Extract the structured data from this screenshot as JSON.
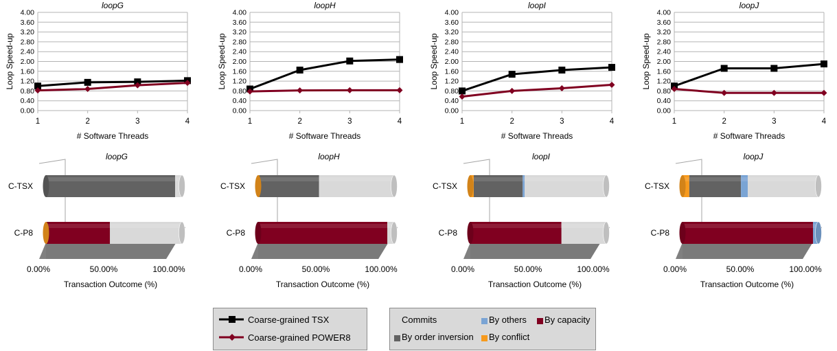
{
  "chart_data": [
    {
      "type": "line",
      "title": "loopG",
      "xlabel": "# Software Threads",
      "ylabel": "Loop Speed-up",
      "x": [
        1,
        2,
        3,
        4
      ],
      "ylim": [
        0,
        4
      ],
      "yticks": [
        "0.00",
        "0.40",
        "0.80",
        "1.20",
        "1.60",
        "2.00",
        "2.40",
        "2.80",
        "3.20",
        "3.60",
        "4.00"
      ],
      "series": [
        {
          "name": "Coarse-grained TSX",
          "values": [
            1.0,
            1.15,
            1.17,
            1.22
          ]
        },
        {
          "name": "Coarse-grained POWER8",
          "values": [
            0.82,
            0.88,
            1.03,
            1.13
          ]
        }
      ]
    },
    {
      "type": "line",
      "title": "loopH",
      "xlabel": "# Software Threads",
      "ylabel": "Loop Speed-up",
      "x": [
        1,
        2,
        3,
        4
      ],
      "ylim": [
        0,
        4
      ],
      "yticks": [
        "0.00",
        "0.40",
        "0.80",
        "1.20",
        "1.60",
        "2.00",
        "2.40",
        "2.80",
        "3.20",
        "3.60",
        "4.00"
      ],
      "series": [
        {
          "name": "Coarse-grained TSX",
          "values": [
            0.88,
            1.65,
            2.02,
            2.08
          ]
        },
        {
          "name": "Coarse-grained POWER8",
          "values": [
            0.78,
            0.82,
            0.83,
            0.83
          ]
        }
      ]
    },
    {
      "type": "line",
      "title": "loopI",
      "xlabel": "# Software Threads",
      "ylabel": "Loop Speed-up",
      "x": [
        1,
        2,
        3,
        4
      ],
      "ylim": [
        0,
        4
      ],
      "yticks": [
        "0.00",
        "0.40",
        "0.80",
        "1.20",
        "1.60",
        "2.00",
        "2.40",
        "2.80",
        "3.20",
        "3.60",
        "4.00"
      ],
      "series": [
        {
          "name": "Coarse-grained TSX",
          "values": [
            0.8,
            1.48,
            1.65,
            1.76
          ]
        },
        {
          "name": "Coarse-grained POWER8",
          "values": [
            0.57,
            0.8,
            0.91,
            1.05
          ]
        }
      ]
    },
    {
      "type": "line",
      "title": "loopJ",
      "xlabel": "# Software Threads",
      "ylabel": "Loop Speed-up",
      "x": [
        1,
        2,
        3,
        4
      ],
      "ylim": [
        0,
        4
      ],
      "yticks": [
        "0.00",
        "0.40",
        "0.80",
        "1.20",
        "1.60",
        "2.00",
        "2.40",
        "2.80",
        "3.20",
        "3.60",
        "4.00"
      ],
      "series": [
        {
          "name": "Coarse-grained TSX",
          "values": [
            1.0,
            1.72,
            1.72,
            1.9
          ]
        },
        {
          "name": "Coarse-grained POWER8",
          "values": [
            0.88,
            0.72,
            0.72,
            0.72
          ]
        }
      ]
    },
    {
      "type": "bar",
      "stacked": true,
      "orientation": "horizontal",
      "title": "loopG",
      "xlabel": "Transaction Outcome (%)",
      "xticks": [
        "0.00%",
        "50.00%",
        "100.00%"
      ],
      "categories": [
        "C-TSX",
        "C-P8"
      ],
      "series": [
        {
          "name": "By conflict",
          "values": [
            0,
            0.5
          ]
        },
        {
          "name": "By capacity",
          "values": [
            0,
            46.5
          ]
        },
        {
          "name": "By order inversion",
          "values": [
            95,
            0
          ]
        },
        {
          "name": "By others",
          "values": [
            0,
            0
          ]
        },
        {
          "name": "Commits",
          "values": [
            5,
            53
          ]
        }
      ]
    },
    {
      "type": "bar",
      "stacked": true,
      "orientation": "horizontal",
      "title": "loopH",
      "xlabel": "Transaction Outcome (%)",
      "xticks": [
        "0.00%",
        "50.00%",
        "100.00%"
      ],
      "categories": [
        "C-TSX",
        "C-P8"
      ],
      "series": [
        {
          "name": "By conflict",
          "values": [
            0.8,
            0
          ]
        },
        {
          "name": "By capacity",
          "values": [
            0,
            95
          ]
        },
        {
          "name": "By order inversion",
          "values": [
            44,
            0
          ]
        },
        {
          "name": "By others",
          "values": [
            0,
            0
          ]
        },
        {
          "name": "Commits",
          "values": [
            55.2,
            5
          ]
        }
      ]
    },
    {
      "type": "bar",
      "stacked": true,
      "orientation": "horizontal",
      "title": "loopI",
      "xlabel": "Transaction Outcome (%)",
      "xticks": [
        "0.00%",
        "50.00%",
        "100.00%"
      ],
      "categories": [
        "C-TSX",
        "C-P8"
      ],
      "series": [
        {
          "name": "By conflict",
          "values": [
            2.5,
            0
          ]
        },
        {
          "name": "By capacity",
          "values": [
            0,
            67
          ]
        },
        {
          "name": "By order inversion",
          "values": [
            36,
            0
          ]
        },
        {
          "name": "By others",
          "values": [
            1.5,
            0
          ]
        },
        {
          "name": "Commits",
          "values": [
            60,
            33
          ]
        }
      ]
    },
    {
      "type": "bar",
      "stacked": true,
      "orientation": "horizontal",
      "title": "loopJ",
      "xlabel": "Transaction Outcome (%)",
      "xticks": [
        "0.00%",
        "50.00%",
        "100.00%"
      ],
      "categories": [
        "C-TSX",
        "C-P8"
      ],
      "series": [
        {
          "name": "By conflict",
          "values": [
            5,
            0
          ]
        },
        {
          "name": "By capacity",
          "values": [
            0,
            96
          ]
        },
        {
          "name": "By order inversion",
          "values": [
            38,
            0
          ]
        },
        {
          "name": "By others",
          "values": [
            5,
            4
          ]
        },
        {
          "name": "Commits",
          "values": [
            52,
            0
          ]
        }
      ]
    }
  ],
  "legend_lines": [
    {
      "label": "Coarse-grained TSX",
      "color": "#000000",
      "marker": "square"
    },
    {
      "label": "Coarse-grained POWER8",
      "color": "#800020",
      "marker": "diamond"
    }
  ],
  "legend_bars": [
    {
      "label": "Commits",
      "color": "#d9d9d9"
    },
    {
      "label": "By others",
      "color": "#7aa4d4"
    },
    {
      "label": "By capacity",
      "color": "#800020"
    },
    {
      "label": "By order inversion",
      "color": "#626262"
    },
    {
      "label": "By conflict",
      "color": "#f79a1d"
    }
  ],
  "colors": {
    "Commits": "#d9d9d9",
    "By others": "#7aa4d4",
    "By capacity": "#800020",
    "By order inversion": "#626262",
    "By conflict": "#f79a1d",
    "Coarse-grained TSX": "#000000",
    "Coarse-grained POWER8": "#800020"
  }
}
